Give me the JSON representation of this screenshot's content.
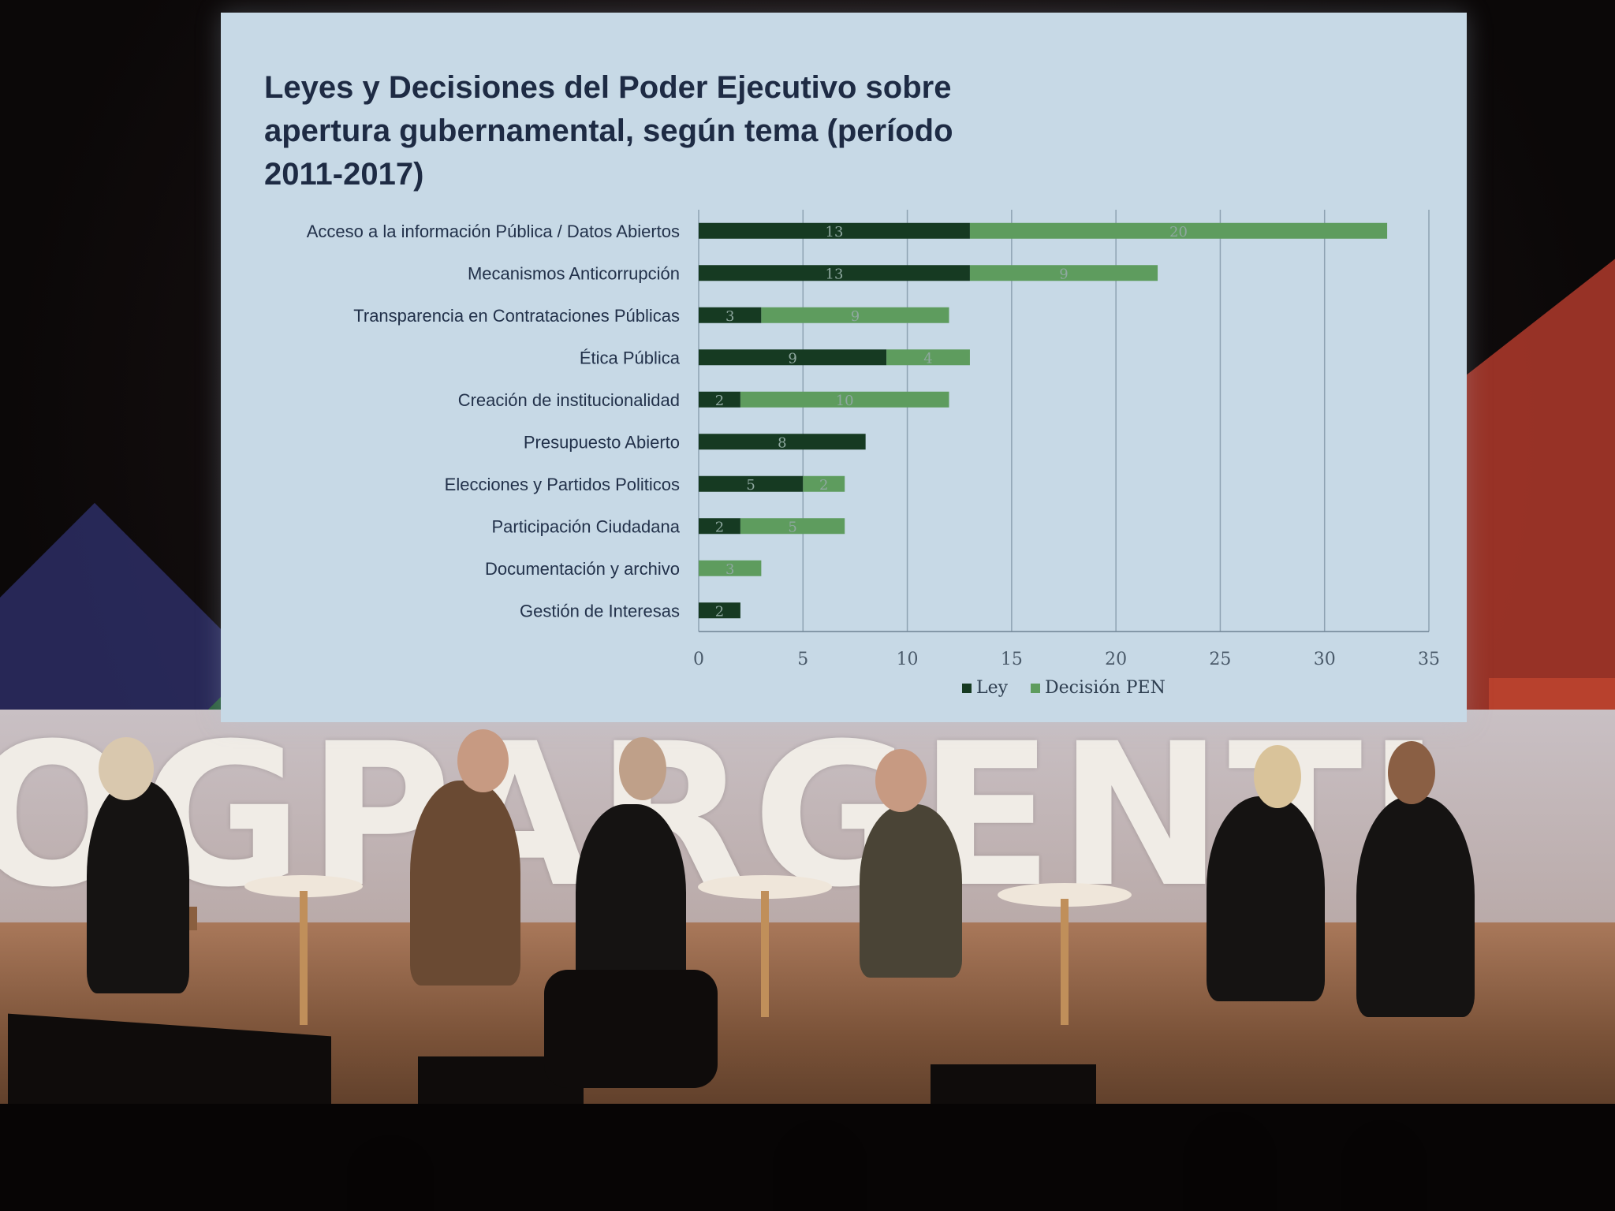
{
  "event_backdrop": {
    "letters": "OGPARGENTI"
  },
  "chart_data": {
    "type": "bar",
    "stacked": true,
    "orientation": "horizontal",
    "title": "Leyes y Decisiones del Poder Ejecutivo sobre apertura gubernamental, según tema  (período 2011-2017)",
    "title_lines": [
      "Leyes y Decisiones del Poder Ejecutivo sobre",
      "apertura gubernamental, según tema  (período",
      "2011-2017)"
    ],
    "categories": [
      "Acceso a la información Pública / Datos Abiertos",
      "Mecanismos Anticorrupción",
      "Transparencia en Contrataciones Públicas",
      "Ética Pública",
      "Creación de institucionalidad",
      "Presupuesto Abierto",
      "Elecciones y Partidos Politicos",
      "Participación Ciudadana",
      "Documentación y archivo",
      "Gestión de Interesas"
    ],
    "series": [
      {
        "name": "Ley",
        "color": "#163a22",
        "values": [
          13,
          13,
          3,
          9,
          2,
          8,
          5,
          2,
          0,
          2
        ]
      },
      {
        "name": "Decisión PEN",
        "color": "#5e9c5e",
        "values": [
          20,
          9,
          9,
          4,
          10,
          0,
          2,
          5,
          3,
          0
        ]
      }
    ],
    "xlim": [
      0,
      35
    ],
    "xticks": [
      0,
      5,
      10,
      15,
      20,
      25,
      30,
      35
    ],
    "grid": true,
    "legend_position": "bottom"
  }
}
